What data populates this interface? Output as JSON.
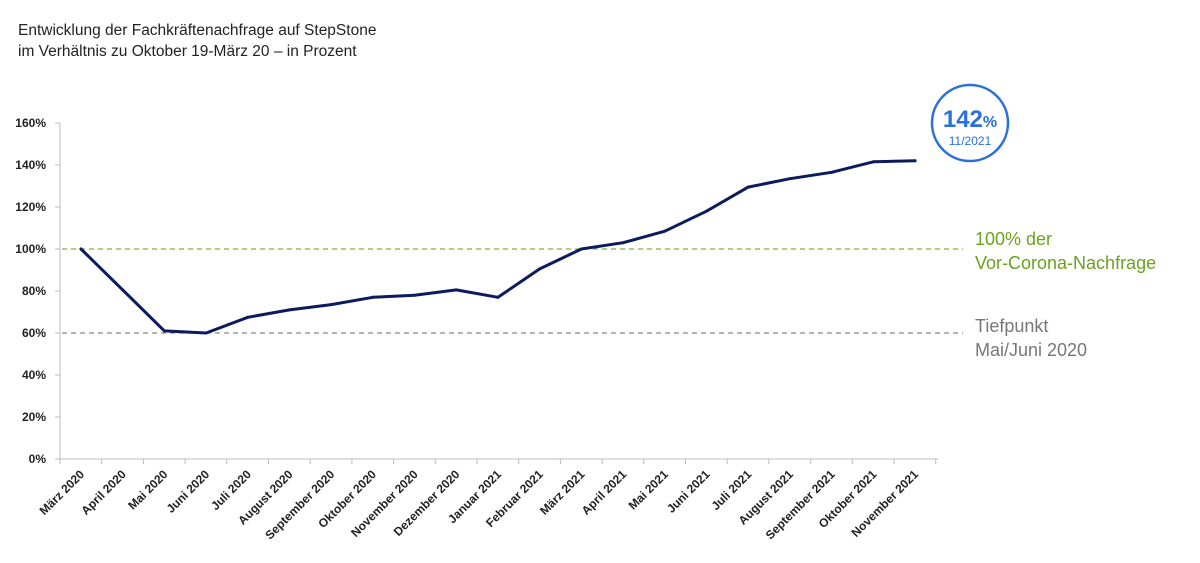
{
  "title_lines": [
    "Entwicklung der Fachkräftenachfrage auf StepStone",
    "im Verhältnis zu Oktober 19-März 20 – in Prozent"
  ],
  "chart_data": {
    "type": "line",
    "title": "Entwicklung der Fachkräftenachfrage auf StepStone im Verhältnis zu Oktober 19-März 20 – in Prozent",
    "categories": [
      "März 2020",
      "April 2020",
      "Mai 2020",
      "Juni 2020",
      "Juli 2020",
      "August 2020",
      "September 2020",
      "Oktober 2020",
      "November 2020",
      "Dezember 2020",
      "Januar 2021",
      "Februar 2021",
      "März 2021",
      "April 2021",
      "Mai 2021",
      "Juni 2021",
      "Juli 2021",
      "August 2021",
      "September 2021",
      "Oktober 2021",
      "November 2021"
    ],
    "series": [
      {
        "values": [
          100,
          80.5,
          61,
          60,
          67.5,
          71,
          73.5,
          77,
          78,
          80.5,
          77,
          90.5,
          100,
          103,
          108.5,
          118,
          129.5,
          133.5,
          136.5,
          141.5,
          142
        ]
      }
    ],
    "ylim": [
      0,
      160
    ],
    "yticks": [
      "0%",
      "20%",
      "40%",
      "60%",
      "80%",
      "100%",
      "120%",
      "140%",
      "160%"
    ],
    "ytick_values": [
      0,
      20,
      40,
      60,
      80,
      100,
      120,
      140,
      160
    ],
    "grid": false,
    "colors": {
      "line": "#0d1b5e",
      "reference_100": "#7ab32e",
      "reference_60": "#888888",
      "badge": "#2a6fdb"
    },
    "reference_lines": [
      {
        "value": 100,
        "label_lines": [
          "100% der",
          "Vor-Corona-Nachfrage"
        ]
      },
      {
        "value": 60,
        "label_lines": [
          "Tiefpunkt",
          "Mai/Juni 2020"
        ]
      }
    ],
    "badge": {
      "value": "142",
      "unit": "%",
      "date": "11/2021"
    }
  }
}
